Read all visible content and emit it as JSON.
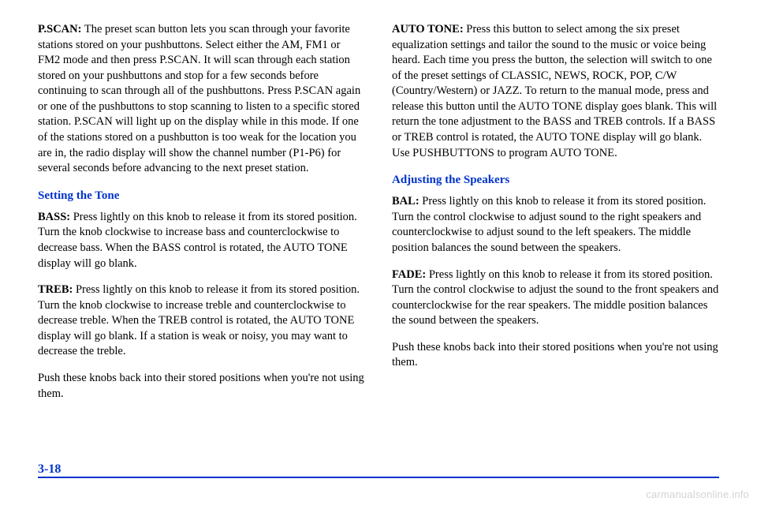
{
  "left": {
    "p1": {
      "label": "P.SCAN:",
      "text": " The preset scan button lets you scan through your favorite stations stored on your pushbuttons. Select either the AM, FM1 or FM2 mode and then press P.SCAN. It will scan through each station stored on your pushbuttons and stop for a few seconds before continuing to scan through all of the pushbuttons. Press P.SCAN again or one of the pushbuttons to stop scanning to listen to a specific stored station. P.SCAN will light up on the display while in this mode. If one of the stations stored on a pushbutton is too weak for the location you are in, the radio display will show the channel number (P1-P6) for several seconds before advancing to the next preset station."
    },
    "h1": "Setting the Tone",
    "p2": {
      "label": "BASS:",
      "text": " Press lightly on this knob to release it from its stored position. Turn the knob clockwise to increase bass and counterclockwise to decrease bass. When the BASS control is rotated, the AUTO TONE display will go blank."
    },
    "p3": {
      "label": "TREB:",
      "text": " Press lightly on this knob to release it from its stored position. Turn the knob clockwise to increase treble and counterclockwise to decrease treble. When the TREB control is rotated, the AUTO TONE display will go blank. If a station is weak or noisy, you may want to decrease the treble."
    },
    "p4": "Push these knobs back into their stored positions when you're not using them."
  },
  "right": {
    "p1": {
      "label": "AUTO TONE:",
      "text": " Press this button to select among the six preset equalization settings and tailor the sound to the music or voice being heard. Each time you press the button, the selection will switch to one of the preset settings of CLASSIC, NEWS, ROCK, POP, C/W (Country/Western) or JAZZ. To return to the manual mode, press and release this button until the AUTO TONE display goes blank. This will return the tone adjustment to the BASS and TREB controls. If a BASS or TREB control is rotated, the AUTO TONE display will go blank. Use PUSHBUTTONS to program AUTO TONE."
    },
    "h1": "Adjusting the Speakers",
    "p2": {
      "label": "BAL:",
      "text": " Press lightly on this knob to release it from its stored position. Turn the control clockwise to adjust sound to the right speakers and counterclockwise to adjust sound to the left speakers. The middle position balances the sound between the speakers."
    },
    "p3": {
      "label": "FADE:",
      "text": " Press lightly on this knob to release it from its stored position. Turn the control clockwise to adjust the sound to the front speakers and counterclockwise for the rear speakers. The middle position balances the sound between the speakers."
    },
    "p4": "Push these knobs back into their stored positions when you're not using them."
  },
  "pageNumber": "3-18",
  "watermark": "carmanualsonline.info",
  "style": {
    "accent": "#0033cc",
    "text": "#000000",
    "bg": "#ffffff",
    "bodyFontSize": 14.5,
    "headingFontSize": 15
  }
}
